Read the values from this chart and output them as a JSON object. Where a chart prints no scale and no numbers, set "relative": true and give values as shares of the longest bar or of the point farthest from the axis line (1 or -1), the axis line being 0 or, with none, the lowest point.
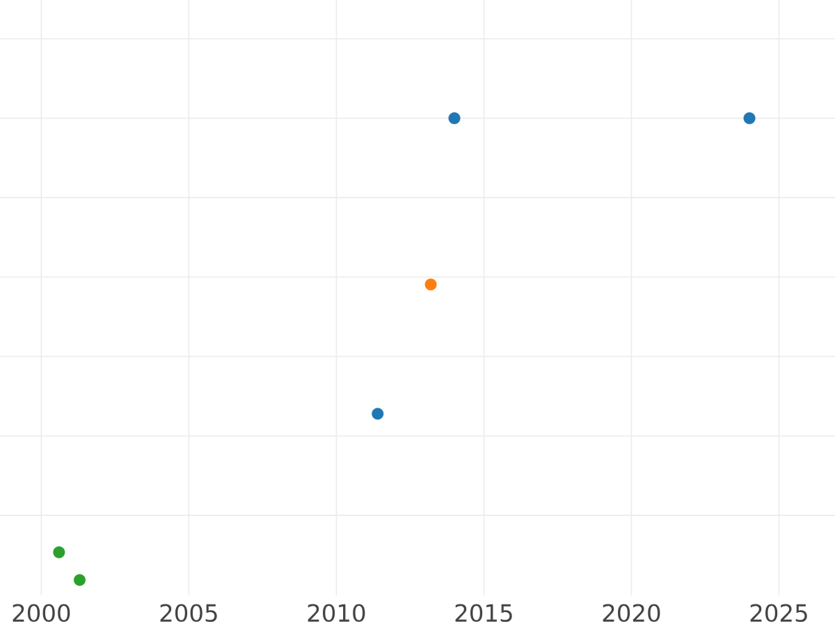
{
  "chart_data": {
    "type": "scatter",
    "relative": true,
    "xlim": [
      1998.6,
      2026.9
    ],
    "xticks": [
      2000,
      2005,
      2010,
      2015,
      2020,
      2025
    ],
    "grid": true,
    "marker": "circle",
    "tick_labels": "x",
    "series": [
      {
        "color": "#1f77b4",
        "x": [
          2011.4,
          2014.0,
          2024.0
        ],
        "values": [
          0.36,
          1,
          1
        ]
      },
      {
        "color": "#ff7f0e",
        "x": [
          2013.2
        ],
        "values": [
          0.64
        ]
      },
      {
        "color": "#2ca02c",
        "x": [
          2000.6,
          2001.3
        ],
        "values": [
          0.06,
          0
        ]
      }
    ]
  }
}
